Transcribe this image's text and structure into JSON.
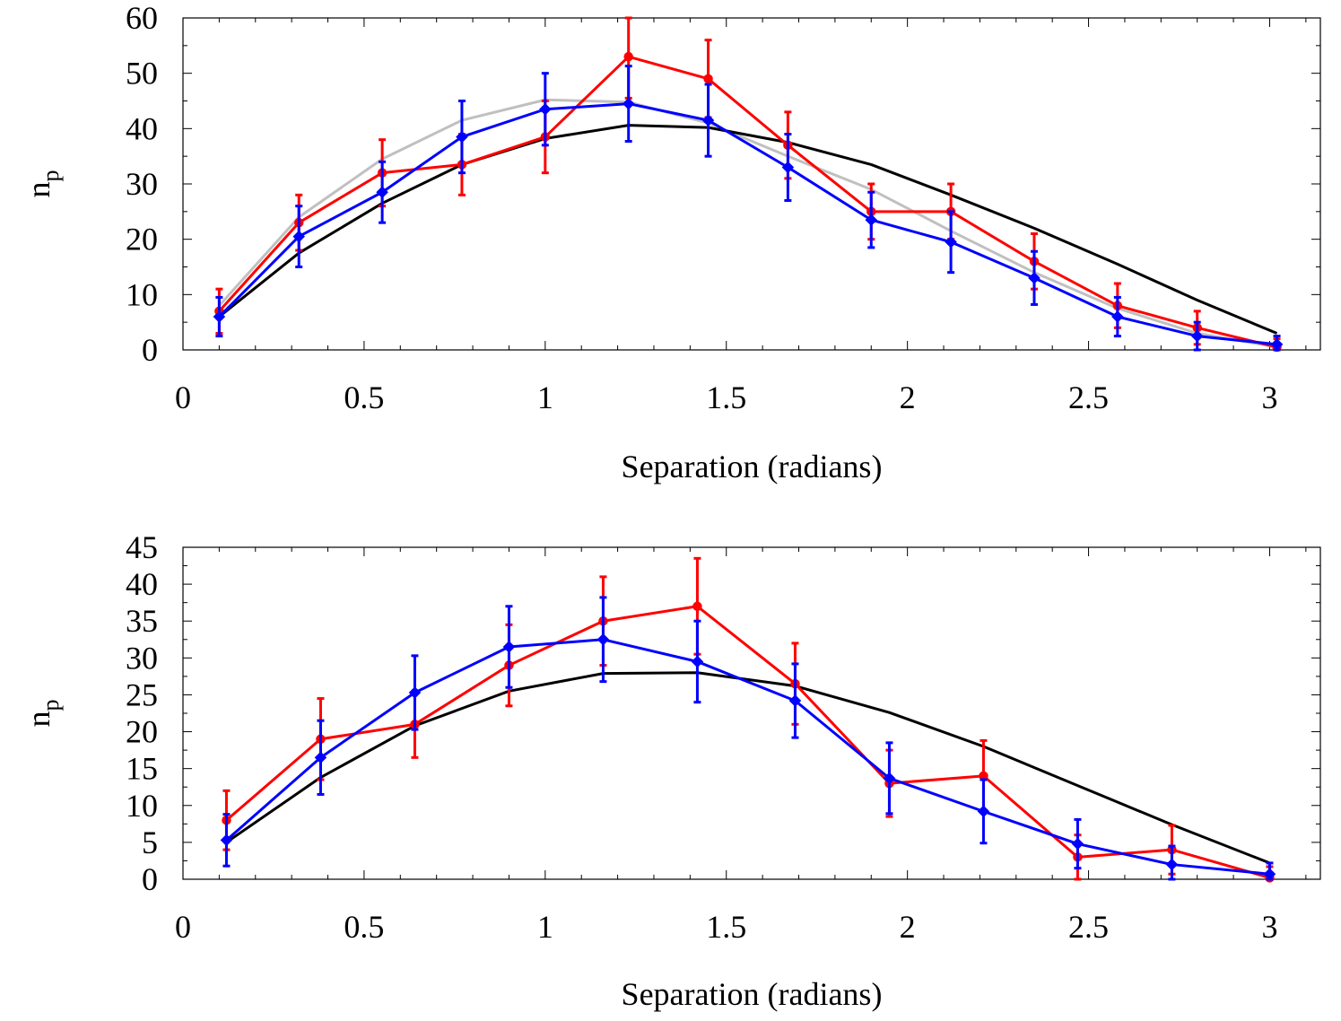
{
  "chart_data": [
    {
      "type": "line",
      "title": "",
      "xlabel": "Separation (radians)",
      "ylabel": "n",
      "ylabel_subscript": "p",
      "xlim": [
        0,
        3.14
      ],
      "ylim": [
        0,
        60
      ],
      "xticks": [
        0,
        0.5,
        1,
        1.5,
        2,
        2.5,
        3
      ],
      "xtick_labels": [
        "0",
        "0.5",
        "1",
        "1.5",
        "2",
        "2.5",
        "3"
      ],
      "yticks": [
        0,
        10,
        20,
        30,
        40,
        50,
        60
      ],
      "ytick_labels": [
        "0",
        "10",
        "20",
        "30",
        "40",
        "50",
        "60"
      ],
      "x_minor_step": 0.1,
      "y_minor_step": 5,
      "grid": false,
      "series": [
        {
          "name": "gray",
          "color": "#c0c0c0",
          "x": [
            0.1,
            0.32,
            0.55,
            0.77,
            1.0,
            1.23,
            1.45,
            1.67,
            1.9,
            2.12,
            2.35,
            2.58,
            2.8,
            3.02
          ],
          "values": [
            8,
            24,
            34.5,
            41.5,
            45.2,
            44.8,
            41,
            35,
            29,
            21.5,
            14,
            7.5,
            3,
            0.5
          ]
        },
        {
          "name": "black",
          "color": "#000000",
          "x": [
            0.1,
            0.32,
            0.55,
            0.77,
            1.0,
            1.23,
            1.45,
            1.67,
            1.9,
            2.12,
            2.35,
            2.58,
            2.8,
            3.02
          ],
          "values": [
            6,
            17.5,
            26.5,
            33.5,
            38.2,
            40.6,
            40.2,
            37.5,
            33.5,
            28,
            22,
            15.5,
            9,
            3
          ]
        },
        {
          "name": "red",
          "color": "#ff0000",
          "marker": "circle",
          "x": [
            0.1,
            0.32,
            0.55,
            0.77,
            1.0,
            1.23,
            1.45,
            1.67,
            1.9,
            2.12,
            2.35,
            2.58,
            2.8,
            3.02
          ],
          "values": [
            7,
            23,
            32,
            33.5,
            38.5,
            53,
            49,
            37,
            25,
            25,
            16,
            8,
            4,
            0.5
          ],
          "errors": [
            4,
            5,
            6,
            5.5,
            6.5,
            7.5,
            7,
            6,
            5,
            5,
            5,
            4,
            3,
            1.5
          ]
        },
        {
          "name": "blue",
          "color": "#0000ff",
          "marker": "diamond",
          "x": [
            0.1,
            0.32,
            0.55,
            0.77,
            1.0,
            1.23,
            1.45,
            1.67,
            1.9,
            2.12,
            2.35,
            2.58,
            2.8,
            3.02
          ],
          "values": [
            6,
            20.5,
            28.5,
            38.5,
            43.5,
            44.5,
            41.5,
            33,
            23.5,
            19.5,
            13,
            6,
            2.5,
            1
          ],
          "errors": [
            3.5,
            5.5,
            5.5,
            6.5,
            6.5,
            6.8,
            6.5,
            6,
            5,
            5.5,
            4.8,
            3.5,
            2.5,
            1.5
          ]
        }
      ]
    },
    {
      "type": "line",
      "title": "",
      "xlabel": "Separation (radians)",
      "ylabel": "n",
      "ylabel_subscript": "p",
      "xlim": [
        0,
        3.14
      ],
      "ylim": [
        0,
        45
      ],
      "xticks": [
        0,
        0.5,
        1,
        1.5,
        2,
        2.5,
        3
      ],
      "xtick_labels": [
        "0",
        "0.5",
        "1",
        "1.5",
        "2",
        "2.5",
        "3"
      ],
      "yticks": [
        0,
        5,
        10,
        15,
        20,
        25,
        30,
        35,
        40,
        45
      ],
      "ytick_labels": [
        "0",
        "5",
        "10",
        "15",
        "20",
        "25",
        "30",
        "35",
        "40",
        "45"
      ],
      "x_minor_step": 0.1,
      "y_minor_step": 2.5,
      "grid": false,
      "series": [
        {
          "name": "black",
          "color": "#000000",
          "x": [
            0.12,
            0.38,
            0.64,
            0.9,
            1.16,
            1.42,
            1.69,
            1.95,
            2.21,
            2.47,
            2.73,
            3.0
          ],
          "values": [
            5,
            13.8,
            20.8,
            25.5,
            27.9,
            28,
            26.2,
            22.6,
            18,
            12.7,
            7.4,
            2.2
          ]
        },
        {
          "name": "red",
          "color": "#ff0000",
          "marker": "circle",
          "x": [
            0.12,
            0.38,
            0.64,
            0.9,
            1.16,
            1.42,
            1.69,
            1.95,
            2.21,
            2.47,
            2.73,
            3.0
          ],
          "values": [
            8,
            19,
            21,
            29,
            35,
            37,
            26.5,
            13,
            14,
            3,
            4,
            0.2
          ],
          "errors": [
            4,
            5.5,
            4.5,
            5.5,
            6,
            6.5,
            5.5,
            4.5,
            4.8,
            3,
            3.3,
            1.5
          ]
        },
        {
          "name": "blue",
          "color": "#0000ff",
          "marker": "diamond",
          "x": [
            0.12,
            0.38,
            0.64,
            0.9,
            1.16,
            1.42,
            1.69,
            1.95,
            2.21,
            2.47,
            2.73,
            3.0
          ],
          "values": [
            5.3,
            16.5,
            25.3,
            31.5,
            32.5,
            29.5,
            24.2,
            13.7,
            9.2,
            4.8,
            2,
            0.7
          ],
          "errors": [
            3.5,
            5,
            5,
            5.5,
            5.7,
            5.5,
            5,
            4.8,
            4.3,
            3.3,
            2.5,
            1.5
          ]
        }
      ]
    }
  ]
}
